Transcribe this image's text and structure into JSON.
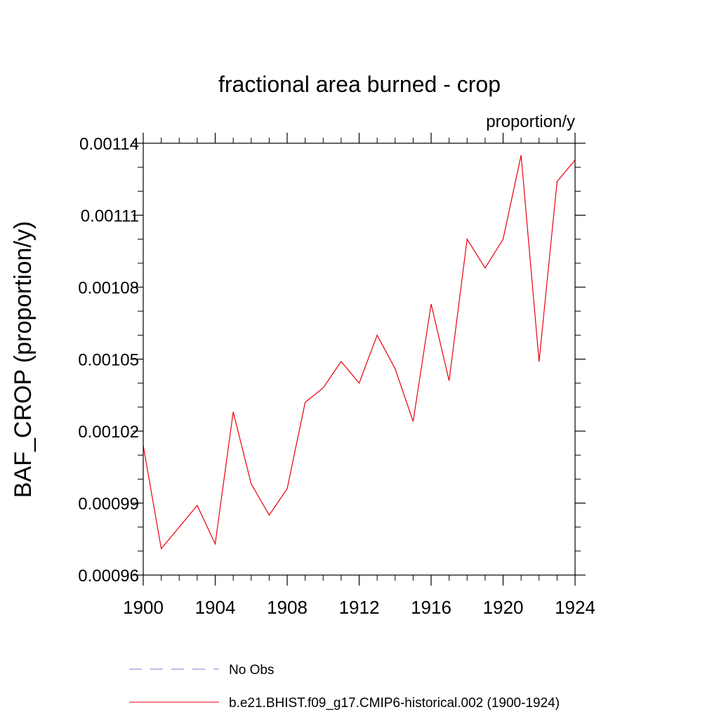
{
  "chart_data": {
    "type": "line",
    "title": "fractional area burned - crop",
    "units_label": "proportion/y",
    "ylabel": "BAF_CROP  (proportion/y)",
    "xlabel": "",
    "xlim": [
      1900,
      1924
    ],
    "ylim": [
      0.00096,
      0.00114
    ],
    "x_ticks": [
      1900,
      1904,
      1908,
      1912,
      1916,
      1920,
      1924
    ],
    "x_tick_labels": [
      "1900",
      "1904",
      "1908",
      "1912",
      "1916",
      "1920",
      "1924"
    ],
    "y_ticks": [
      0.00096,
      0.00099,
      0.00102,
      0.00105,
      0.00108,
      0.00111,
      0.00114
    ],
    "y_tick_labels": [
      "0.00096",
      "0.00099",
      "0.00102",
      "0.00105",
      "0.00108",
      "0.00111",
      "0.00114"
    ],
    "y_minor_step": 1e-05,
    "x_minor_step": 1,
    "grid": false,
    "series": [
      {
        "name": "b.e21.BHIST.f09_g17.CMIP6-historical.002 (1900-1924)",
        "color": "#e8000b",
        "style": "solid",
        "x": [
          1900,
          1901,
          1902,
          1903,
          1904,
          1905,
          1906,
          1907,
          1908,
          1909,
          1910,
          1911,
          1912,
          1913,
          1914,
          1915,
          1916,
          1917,
          1918,
          1919,
          1920,
          1921,
          1922,
          1923,
          1924
        ],
        "values": [
          0.001014,
          0.000971,
          0.00098,
          0.000989,
          0.000973,
          0.001028,
          0.000998,
          0.000985,
          0.000996,
          0.001032,
          0.001038,
          0.001049,
          0.00104,
          0.00106,
          0.001046,
          0.001024,
          0.001073,
          0.001041,
          0.0011,
          0.001088,
          0.0011,
          0.001135,
          0.001049,
          0.001124,
          0.001133
        ]
      }
    ],
    "legend": [
      {
        "label": "No Obs",
        "color": "#7b7bd0",
        "style": "dashed"
      },
      {
        "label": "b.e21.BHIST.f09_g17.CMIP6-historical.002 (1900-1924)",
        "color": "#e8000b",
        "style": "solid"
      }
    ]
  }
}
